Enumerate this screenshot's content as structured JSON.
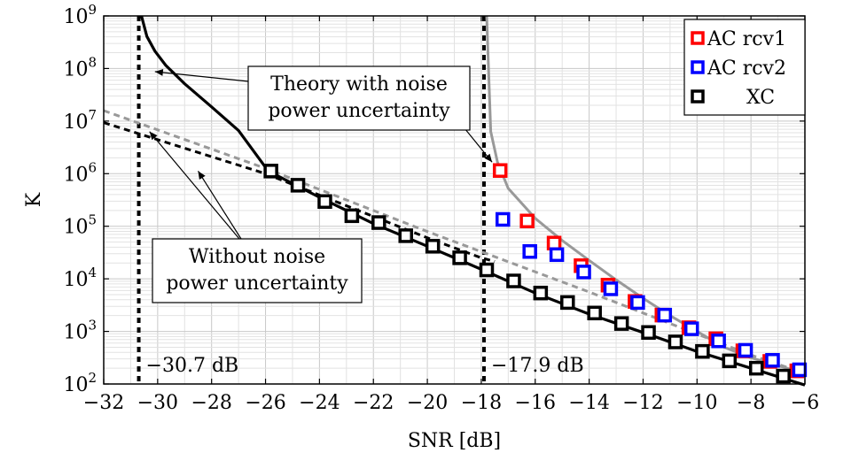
{
  "chart_data": {
    "type": "line",
    "xlabel": "SNR [dB]",
    "ylabel": "K",
    "xlim": [
      -32,
      -6
    ],
    "ylim_log10": [
      2,
      9
    ],
    "y_scale": "log",
    "grid": true,
    "x_ticks": [
      -32,
      -30,
      -28,
      -26,
      -24,
      -22,
      -20,
      -18,
      -16,
      -14,
      -12,
      -10,
      -8,
      -6
    ],
    "x_tick_labels": [
      "−32",
      "−30",
      "−28",
      "−26",
      "−24",
      "−22",
      "−20",
      "−18",
      "−16",
      "−14",
      "−12",
      "−10",
      "−8",
      "−6"
    ],
    "y_ticks_log10": [
      2,
      3,
      4,
      5,
      6,
      7,
      8,
      9
    ],
    "y_tick_base": "10",
    "y_tick_exponents": [
      "2",
      "3",
      "4",
      "5",
      "6",
      "7",
      "8",
      "9"
    ],
    "vlines": [
      {
        "x": -30.7,
        "label": "−30.7 dB"
      },
      {
        "x": -17.9,
        "label": "−17.9 dB"
      }
    ],
    "curves": [
      {
        "id": "theory-xc",
        "style": "black-solid",
        "asymptote": -30.7,
        "points": [
          [
            -30.6,
            9.0
          ],
          [
            -30.4,
            8.61
          ],
          [
            -30.1,
            8.33
          ],
          [
            -29.7,
            8.06
          ],
          [
            -29.0,
            7.71
          ],
          [
            -28.0,
            7.27
          ],
          [
            -27.0,
            6.82
          ],
          [
            -25.9,
            6.05
          ],
          [
            -24.0,
            5.55
          ],
          [
            -22.0,
            5.05
          ],
          [
            -20.0,
            4.62
          ],
          [
            -18.0,
            4.18
          ],
          [
            -16.0,
            3.73
          ],
          [
            -14.0,
            3.33
          ],
          [
            -12.0,
            2.98
          ],
          [
            -10.0,
            2.62
          ],
          [
            -8.0,
            2.3
          ],
          [
            -6.0,
            1.98
          ]
        ]
      },
      {
        "id": "theory-ac",
        "style": "gray-solid",
        "asymptote": -17.9,
        "points": [
          [
            -17.8,
            9.0
          ],
          [
            -17.65,
            6.8
          ],
          [
            -17.4,
            6.22
          ],
          [
            -17.0,
            5.72
          ],
          [
            -16.0,
            5.15
          ],
          [
            -15.0,
            4.73
          ],
          [
            -14.0,
            4.35
          ],
          [
            -13.0,
            3.98
          ],
          [
            -12.0,
            3.63
          ],
          [
            -11.0,
            3.3
          ],
          [
            -10.0,
            3.0
          ],
          [
            -9.0,
            2.7
          ],
          [
            -8.0,
            2.5
          ],
          [
            -7.0,
            2.35
          ],
          [
            -6.0,
            2.2
          ]
        ]
      },
      {
        "id": "no-uncert-xc",
        "style": "black-dashed",
        "points": [
          [
            -32.0,
            6.97
          ],
          [
            -26.0,
            6.0
          ],
          [
            -20.0,
            4.78
          ],
          [
            -18.0,
            4.4
          ],
          [
            -17.5,
            4.33
          ]
        ]
      },
      {
        "id": "no-uncert-ac",
        "style": "gray-dashed",
        "points": [
          [
            -32.0,
            7.2
          ],
          [
            -26.0,
            6.1
          ],
          [
            -20.0,
            4.9
          ],
          [
            -14.0,
            3.75
          ],
          [
            -8.0,
            2.55
          ],
          [
            -6.0,
            2.2
          ]
        ]
      }
    ],
    "series": [
      {
        "name": "AC rcv1",
        "color": "#ff0000",
        "x": [
          -17.3,
          -16.3,
          -15.3,
          -14.3,
          -13.3,
          -12.3,
          -11.3,
          -10.3,
          -9.3,
          -8.3,
          -7.3,
          -6.3
        ],
        "log10_y": [
          6.06,
          5.1,
          4.68,
          4.25,
          3.88,
          3.57,
          3.31,
          3.07,
          2.86,
          2.63,
          2.43,
          2.25
        ]
      },
      {
        "name": "AC rcv2",
        "color": "#0000ff",
        "x": [
          -17.2,
          -16.2,
          -15.2,
          -14.2,
          -13.2,
          -12.2,
          -11.2,
          -10.2,
          -9.2,
          -8.2,
          -7.2,
          -6.2
        ],
        "log10_y": [
          5.13,
          4.52,
          4.46,
          4.13,
          3.81,
          3.55,
          3.31,
          3.05,
          2.82,
          2.64,
          2.45,
          2.27
        ]
      },
      {
        "name": "XC",
        "color": "#000000",
        "x": [
          -25.8,
          -24.8,
          -23.8,
          -22.8,
          -21.8,
          -20.8,
          -19.8,
          -18.8,
          -17.8,
          -16.8,
          -15.8,
          -14.8,
          -13.8,
          -12.8,
          -11.8,
          -10.8,
          -9.8,
          -8.8,
          -7.8,
          -6.8
        ],
        "log10_y": [
          6.05,
          5.78,
          5.47,
          5.2,
          5.07,
          4.82,
          4.62,
          4.4,
          4.17,
          3.96,
          3.73,
          3.55,
          3.35,
          3.15,
          2.98,
          2.8,
          2.62,
          2.44,
          2.3,
          2.15
        ]
      }
    ],
    "annotations": [
      {
        "id": "theory",
        "lines": [
          "Theory with noise",
          "power uncertainty"
        ],
        "arrows_to": [
          [
            -30.1,
            7.94
          ],
          [
            -17.6,
            6.22
          ]
        ]
      },
      {
        "id": "without",
        "lines": [
          "Without noise",
          "power uncertainty"
        ],
        "arrows_to": [
          [
            -30.3,
            6.8
          ],
          [
            -28.5,
            6.05
          ]
        ]
      }
    ]
  }
}
